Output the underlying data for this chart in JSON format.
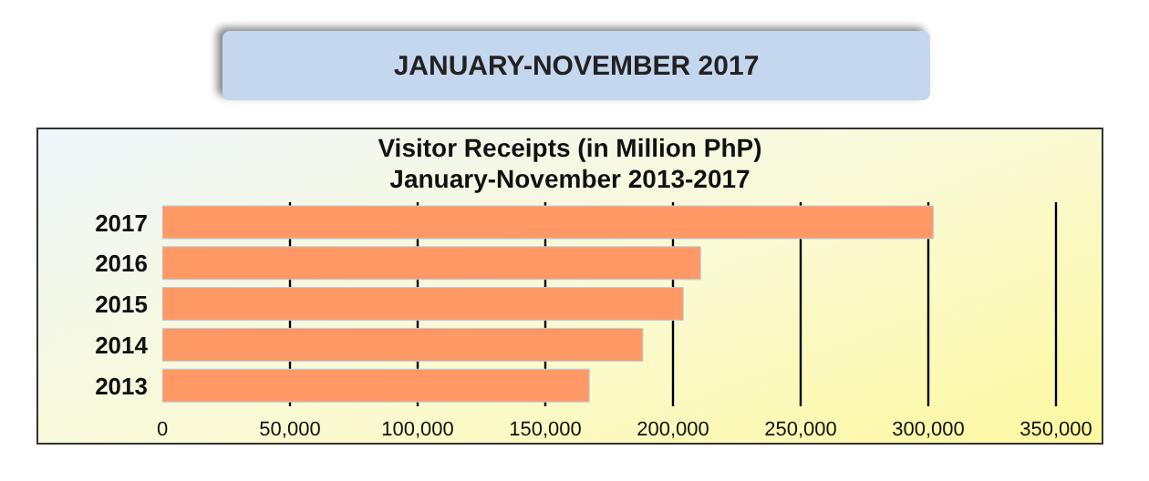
{
  "chart_data": {
    "type": "bar",
    "orientation": "horizontal",
    "title": "Visitor Receipts (in Million PhP)",
    "subtitle": "January-November 2013-2017",
    "annotations": [
      "JANUARY-NOVEMBER 2017"
    ],
    "categories": [
      "2017",
      "2016",
      "2015",
      "2014",
      "2013"
    ],
    "values": [
      302000,
      210800,
      204000,
      188200,
      167200
    ],
    "color": "#fe9966",
    "xlim": [
      0,
      350000
    ],
    "xticks": [
      {
        "value": 0,
        "label": "0"
      },
      {
        "value": 50000,
        "label": "50,000"
      },
      {
        "value": 100000,
        "label": "100,000"
      },
      {
        "value": 150000,
        "label": "150,000"
      },
      {
        "value": 200000,
        "label": "200,000"
      },
      {
        "value": 250000,
        "label": "250,000"
      },
      {
        "value": 300000,
        "label": "300,000"
      },
      {
        "value": 350000,
        "label": "350,000"
      }
    ],
    "grid": "x",
    "legend": false
  }
}
